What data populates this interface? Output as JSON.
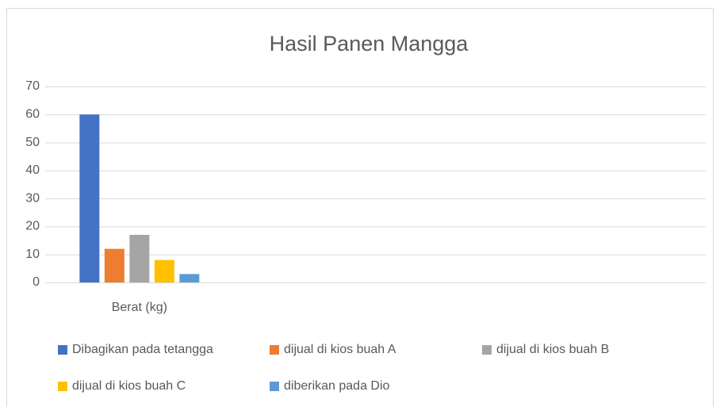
{
  "chart_data": {
    "type": "bar",
    "title": "Hasil Panen Mangga",
    "categories": [
      "Berat (kg)",
      null,
      null
    ],
    "series": [
      {
        "name": "Dibagikan pada tetangga",
        "color": "#4472c4",
        "values": [
          60,
          null,
          null
        ]
      },
      {
        "name": "dijual di kios buah A",
        "color": "#ed7d31",
        "values": [
          12,
          null,
          null
        ]
      },
      {
        "name": "dijual di kios buah B",
        "color": "#a5a5a5",
        "values": [
          17,
          null,
          null
        ]
      },
      {
        "name": "dijual di kios buah C",
        "color": "#ffc000",
        "values": [
          8,
          null,
          null
        ]
      },
      {
        "name": "diberikan pada Dio",
        "color": "#5b9bd5",
        "values": [
          3,
          null,
          null
        ]
      }
    ],
    "ylim": [
      0,
      70
    ],
    "yticks": [
      0,
      10,
      20,
      30,
      40,
      50,
      60,
      70
    ],
    "grid": true,
    "legend": "bottom"
  }
}
